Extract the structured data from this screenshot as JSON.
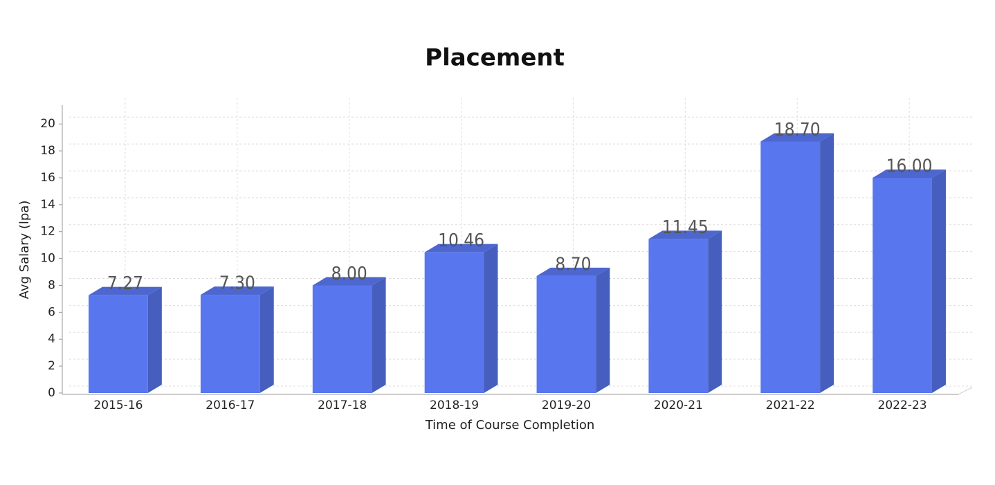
{
  "chart_data": {
    "type": "bar3d",
    "title": "Placement",
    "x_label": "Time of Course Completion",
    "y_label": "Avg Salary (lpa)",
    "categories": [
      "2015-16",
      "2016-17",
      "2017-18",
      "2018-19",
      "2019-20",
      "2020-21",
      "2021-22",
      "2022-23"
    ],
    "values": [
      7.27,
      7.3,
      8,
      10.46,
      8.7,
      11.45,
      18.7,
      16
    ],
    "value_labels": [
      "7.27",
      "7.30",
      "8.00",
      "10.46",
      "8.70",
      "11.45",
      "18.70",
      "16.00"
    ],
    "color": "#5876ee",
    "ylim": [
      0,
      21.4
    ],
    "yticks": [
      0,
      2,
      4,
      6,
      8,
      10,
      12,
      14,
      16,
      18,
      20
    ],
    "grid": true
  }
}
